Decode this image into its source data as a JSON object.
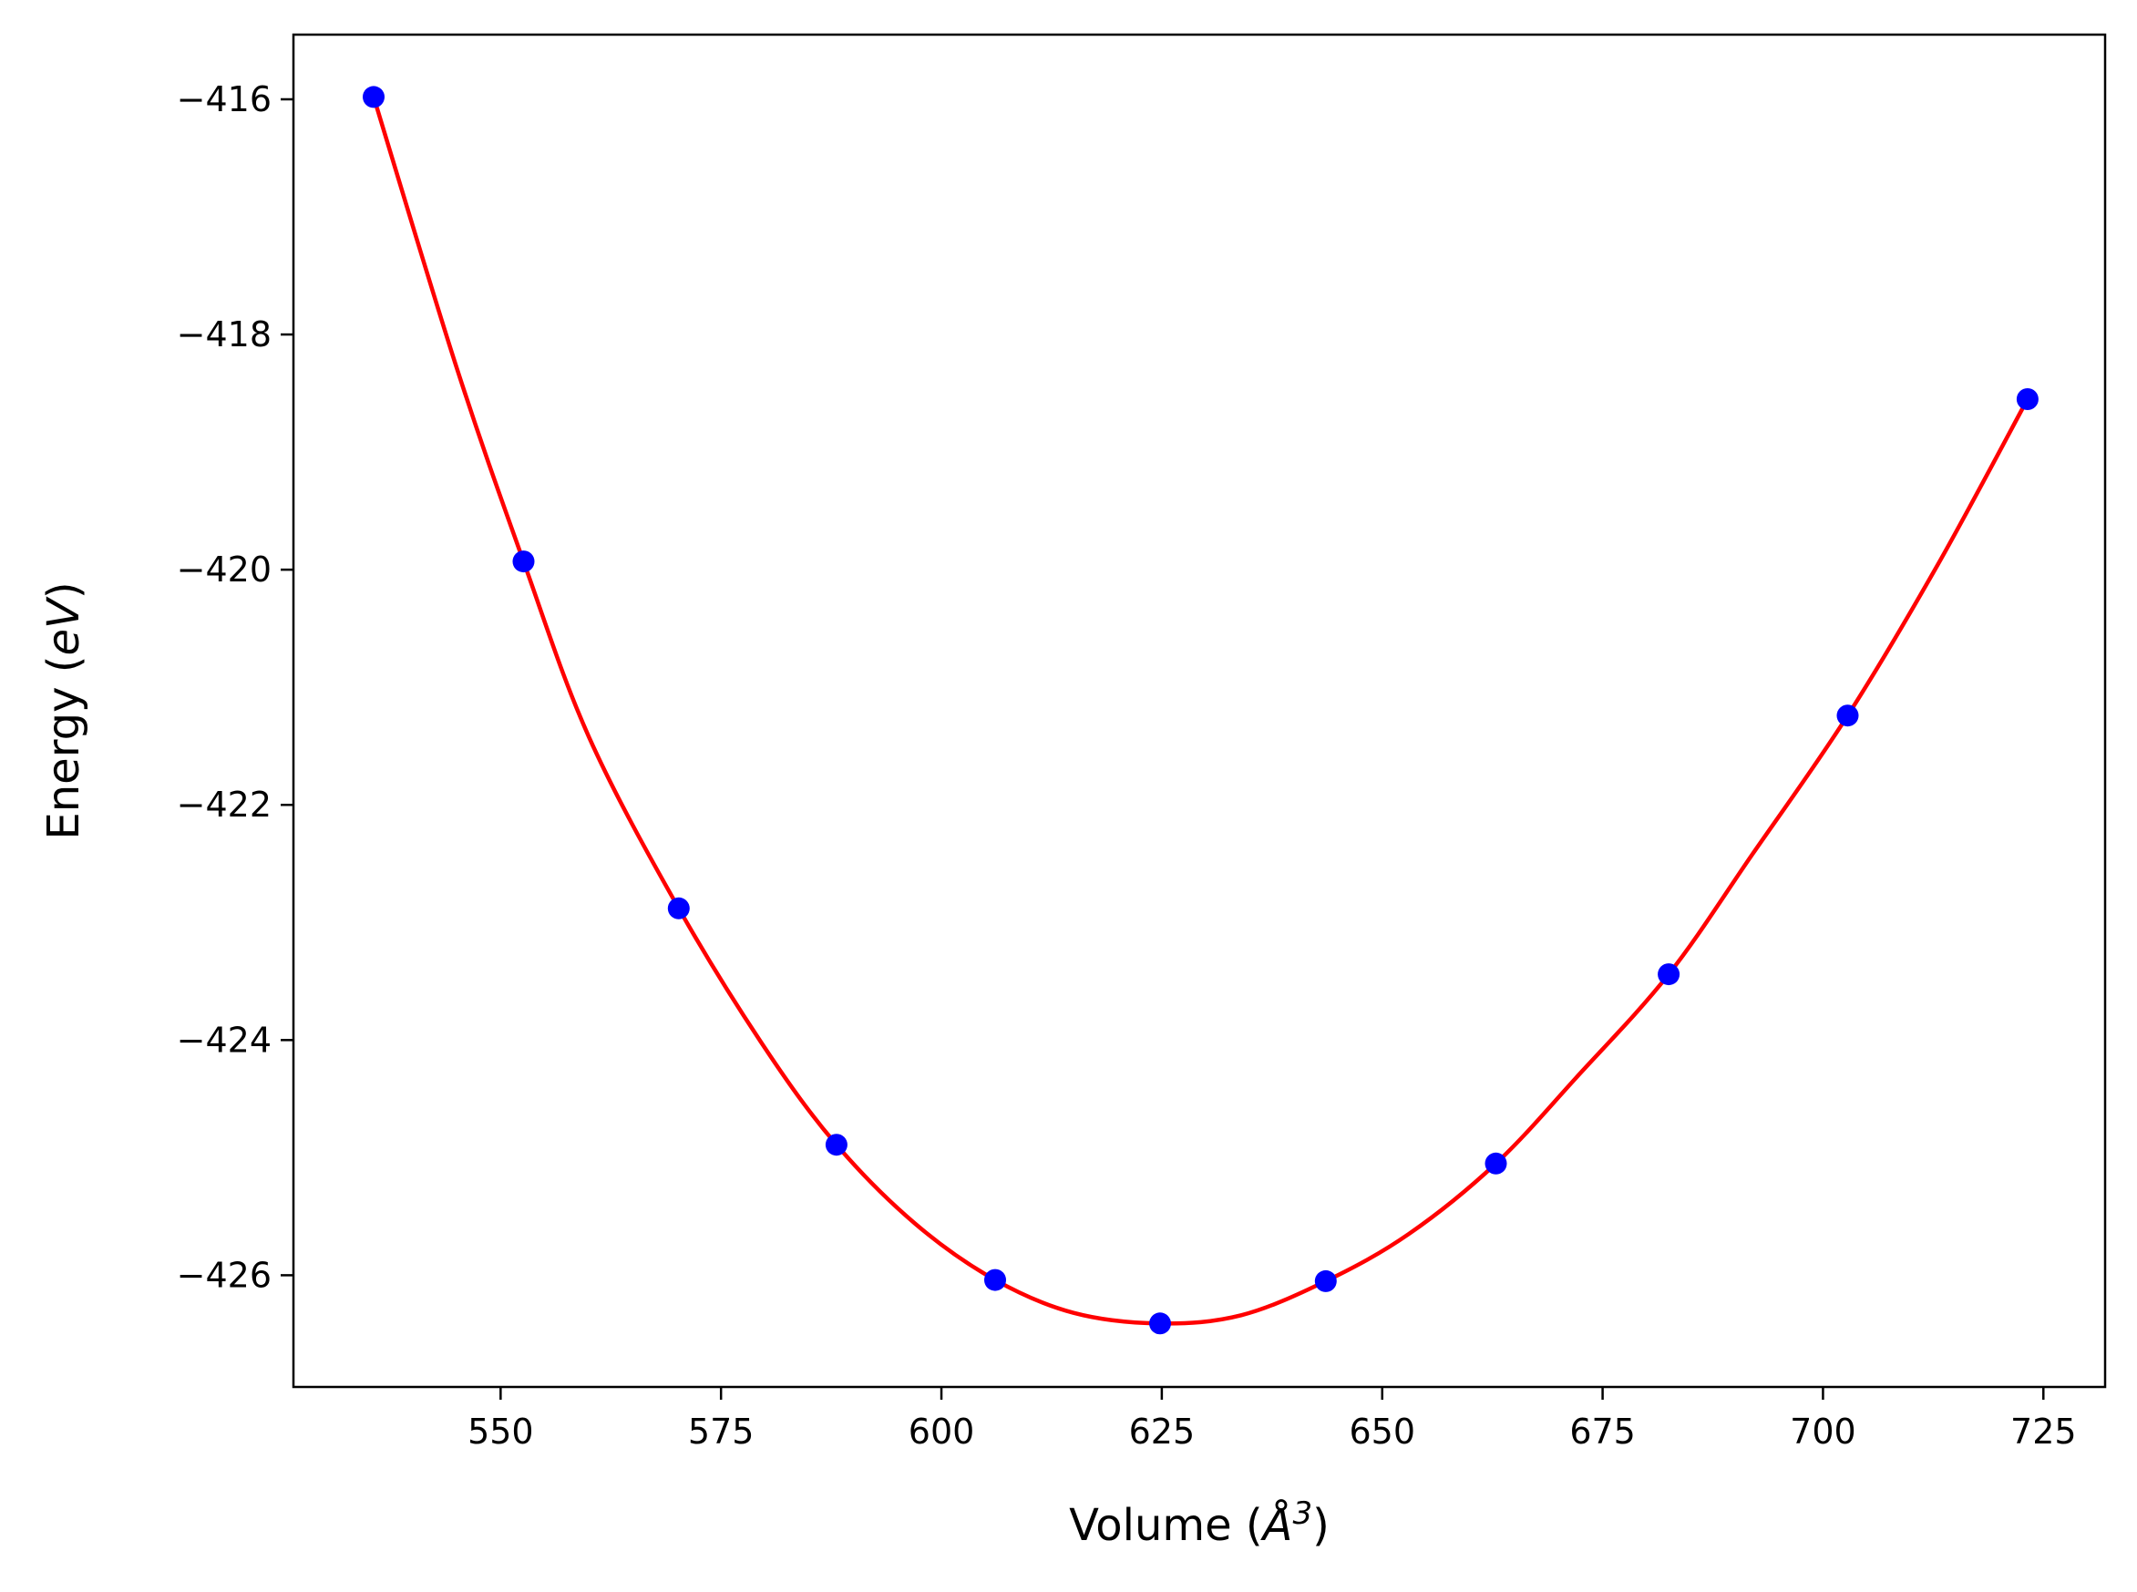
{
  "chart_data": {
    "type": "scatter",
    "title": "",
    "xlabel_main": "Volume (",
    "xlabel_unit": "Å",
    "xlabel_power": "3",
    "xlabel_end": ")",
    "ylabel_main": "Energy (",
    "ylabel_unit": "eV",
    "ylabel_end": ")",
    "xlim": [
      526.5,
      732.0
    ],
    "ylim": [
      -426.95,
      -415.45
    ],
    "xticks": [
      550,
      575,
      600,
      625,
      650,
      675,
      700,
      725
    ],
    "xtick_labels": [
      "550",
      "575",
      "600",
      "625",
      "650",
      "675",
      "700",
      "725"
    ],
    "yticks": [
      -416,
      -418,
      -420,
      -422,
      -424,
      -426
    ],
    "ytick_labels": [
      "−416",
      "−418",
      "−420",
      "−422",
      "−424",
      "−426"
    ],
    "grid": false,
    "series": [
      {
        "kind": "points",
        "color": "#0000ff",
        "x": [
          535.6,
          552.6,
          570.2,
          588.1,
          606.1,
          624.8,
          643.6,
          662.9,
          682.5,
          702.8,
          723.2
        ],
        "y": [
          -415.98,
          -419.93,
          -422.88,
          -424.89,
          -426.04,
          -426.41,
          -426.05,
          -425.05,
          -423.44,
          -421.24,
          -418.55
        ]
      },
      {
        "kind": "fit-line",
        "color": "#ff0000",
        "x": [
          535.6,
          545,
          552.6,
          560,
          570.2,
          580,
          588.1,
          597,
          606.1,
          615,
          624.8,
          634,
          643.6,
          653,
          662.9,
          672,
          682.5,
          692,
          702.8,
          713,
          723.2
        ],
        "y": [
          -415.98,
          -418.28,
          -419.93,
          -421.42,
          -422.88,
          -424.07,
          -424.89,
          -425.56,
          -426.04,
          -426.32,
          -426.41,
          -426.34,
          -426.05,
          -425.65,
          -425.05,
          -424.32,
          -423.44,
          -422.42,
          -421.24,
          -419.96,
          -418.55
        ]
      }
    ]
  }
}
